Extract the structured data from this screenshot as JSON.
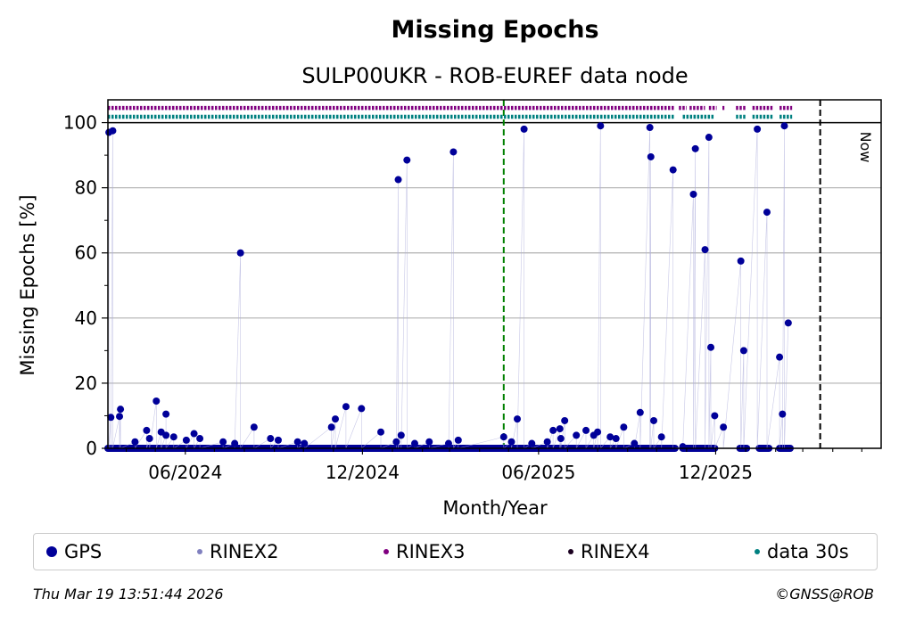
{
  "chart_data": {
    "type": "scatter",
    "title": "Missing Epochs",
    "subtitle": "SULP00UKR - ROB-EUREF data node",
    "xlabel": "Month/Year",
    "ylabel": "Missing Epochs [%]",
    "x_ticks": [
      "06/2024",
      "12/2024",
      "06/2025",
      "12/2025"
    ],
    "y_ticks": [
      "0",
      "20",
      "40",
      "60",
      "80",
      "100"
    ],
    "ylim": [
      0,
      107
    ],
    "xlim": [
      "2024-03-13",
      "2026-05-21"
    ],
    "grid": "horizontal",
    "vlines": [
      {
        "label": "",
        "x": "2025-04-26",
        "color": "#008000",
        "style": "dashed"
      },
      {
        "label": "Now",
        "x": "2026-03-19",
        "color": "#000000",
        "style": "dashed"
      }
    ],
    "series": [
      {
        "name": "GPS",
        "color": "#000099",
        "points": [
          [
            "2024-03-14",
            97
          ],
          [
            "2024-03-16",
            9.5
          ],
          [
            "2024-03-18",
            97.5
          ],
          [
            "2024-03-25",
            9.8
          ],
          [
            "2024-03-26",
            12
          ],
          [
            "2024-04-10",
            2
          ],
          [
            "2024-04-22",
            5.5
          ],
          [
            "2024-04-25",
            3
          ],
          [
            "2024-05-02",
            14.5
          ],
          [
            "2024-05-07",
            5
          ],
          [
            "2024-05-12",
            4
          ],
          [
            "2024-05-12",
            10.5
          ],
          [
            "2024-05-20",
            3.5
          ],
          [
            "2024-06-02",
            2.5
          ],
          [
            "2024-06-10",
            4.5
          ],
          [
            "2024-06-16",
            3
          ],
          [
            "2024-07-10",
            2
          ],
          [
            "2024-07-22",
            1.5
          ],
          [
            "2024-07-28",
            60
          ],
          [
            "2024-08-11",
            6.5
          ],
          [
            "2024-08-28",
            3
          ],
          [
            "2024-09-05",
            2.5
          ],
          [
            "2024-09-25",
            2
          ],
          [
            "2024-10-02",
            1.5
          ],
          [
            "2024-10-30",
            6.5
          ],
          [
            "2024-11-03",
            9
          ],
          [
            "2024-11-14",
            12.8
          ],
          [
            "2024-11-30",
            12.2
          ],
          [
            "2024-12-20",
            5
          ],
          [
            "2025-01-05",
            2
          ],
          [
            "2025-01-07",
            82.5
          ],
          [
            "2025-01-10",
            4
          ],
          [
            "2025-01-16",
            88.5
          ],
          [
            "2025-01-24",
            1.5
          ],
          [
            "2025-02-08",
            2
          ],
          [
            "2025-02-28",
            1.5
          ],
          [
            "2025-03-05",
            91
          ],
          [
            "2025-03-10",
            2.5
          ],
          [
            "2025-04-26",
            3.5
          ],
          [
            "2025-05-04",
            2
          ],
          [
            "2025-05-10",
            9
          ],
          [
            "2025-05-17",
            98
          ],
          [
            "2025-05-25",
            1.5
          ],
          [
            "2025-06-10",
            2
          ],
          [
            "2025-06-16",
            5.5
          ],
          [
            "2025-06-23",
            6
          ],
          [
            "2025-06-24",
            3
          ],
          [
            "2025-06-28",
            8.5
          ],
          [
            "2025-07-10",
            4
          ],
          [
            "2025-07-20",
            5.5
          ],
          [
            "2025-07-28",
            4
          ],
          [
            "2025-08-01",
            5
          ],
          [
            "2025-08-04",
            99
          ],
          [
            "2025-08-14",
            3.5
          ],
          [
            "2025-08-20",
            3
          ],
          [
            "2025-08-28",
            6.5
          ],
          [
            "2025-09-08",
            1.5
          ],
          [
            "2025-09-14",
            11
          ],
          [
            "2025-09-24",
            98.5
          ],
          [
            "2025-09-25",
            89.5
          ],
          [
            "2025-09-28",
            8.5
          ],
          [
            "2025-10-06",
            3.5
          ],
          [
            "2025-10-18",
            85.5
          ],
          [
            "2025-10-28",
            0.5
          ],
          [
            "2025-11-08",
            78
          ],
          [
            "2025-11-10",
            92
          ],
          [
            "2025-11-20",
            61
          ],
          [
            "2025-11-24",
            95.5
          ],
          [
            "2025-11-26",
            31
          ],
          [
            "2025-11-30",
            10
          ],
          [
            "2025-12-09",
            6.5
          ],
          [
            "2025-12-27",
            57.5
          ],
          [
            "2025-12-30",
            30
          ],
          [
            "2026-01-13",
            98
          ],
          [
            "2026-01-23",
            72.5
          ],
          [
            "2026-02-05",
            28
          ],
          [
            "2026-02-08",
            10.5
          ],
          [
            "2026-02-10",
            99
          ],
          [
            "2026-02-14",
            38.5
          ]
        ]
      },
      {
        "name": "RINEX2",
        "color": "#8080bf",
        "points": []
      },
      {
        "name": "RINEX3",
        "color": "#800080",
        "y": 104.5,
        "segments": [
          [
            "2024-03-13",
            "2025-10-20"
          ],
          [
            "2025-10-24",
            "2025-11-01"
          ],
          [
            "2025-11-04",
            "2025-11-20"
          ],
          [
            "2025-11-24",
            "2025-12-02"
          ],
          [
            "2025-12-08",
            "2025-12-10"
          ],
          [
            "2025-12-22",
            "2026-01-02"
          ],
          [
            "2026-01-08",
            "2026-01-30"
          ],
          [
            "2026-02-05",
            "2026-02-18"
          ]
        ]
      },
      {
        "name": "RINEX4",
        "color": "#1a0020",
        "points": []
      },
      {
        "name": "data 30s",
        "color": "#008080",
        "y": 101.8,
        "segments": [
          [
            "2024-03-13",
            "2025-10-20"
          ],
          [
            "2025-10-28",
            "2025-11-30"
          ],
          [
            "2025-12-22",
            "2026-01-02"
          ],
          [
            "2026-01-08",
            "2026-01-30"
          ],
          [
            "2026-02-05",
            "2026-02-18"
          ]
        ]
      }
    ]
  },
  "legend": [
    {
      "label": "GPS",
      "color": "#000099"
    },
    {
      "label": "RINEX2",
      "color": "#8080bf"
    },
    {
      "label": "RINEX3",
      "color": "#800080"
    },
    {
      "label": "RINEX4",
      "color": "#1a0020"
    },
    {
      "label": "data 30s",
      "color": "#008080"
    }
  ],
  "now_label": "Now",
  "footer": {
    "timestamp": "Thu Mar 19 13:51:44 2026",
    "copyright": "©GNSS@ROB"
  }
}
